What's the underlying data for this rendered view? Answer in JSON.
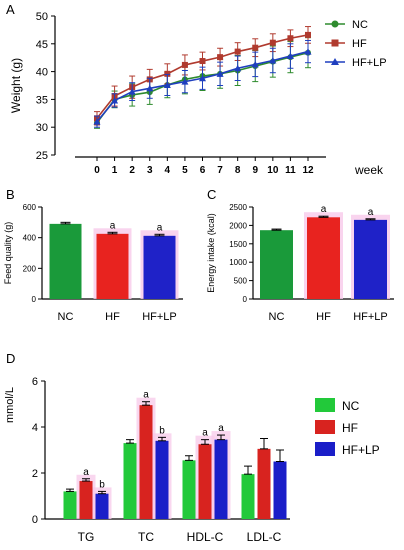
{
  "chart_data": [
    {
      "panel": "A",
      "type": "line",
      "ylabel": "Weight (g)",
      "xlabel": "week",
      "x": [
        0,
        1,
        2,
        3,
        4,
        5,
        6,
        7,
        8,
        9,
        10,
        11,
        12
      ],
      "ylim": [
        25,
        50
      ],
      "yticks": [
        25,
        30,
        35,
        40,
        45,
        50
      ],
      "legend_position": "right",
      "series": [
        {
          "name": "NC",
          "color": "#2e8b2e",
          "marker": "circle",
          "values": [
            30.8,
            35.0,
            35.8,
            36.3,
            37.6,
            38.6,
            39.2,
            39.6,
            40.2,
            41.0,
            41.8,
            42.6,
            43.4
          ],
          "errors": [
            1.0,
            1.5,
            2.0,
            2.2,
            2.3,
            2.6,
            2.6,
            2.6,
            2.7,
            2.8,
            2.8,
            2.8,
            2.7
          ]
        },
        {
          "name": "HF",
          "color": "#b03a2e",
          "marker": "square",
          "values": [
            31.6,
            35.6,
            37.2,
            38.6,
            39.6,
            41.2,
            41.9,
            42.6,
            43.6,
            44.3,
            45.2,
            46.0,
            46.6
          ],
          "errors": [
            1.2,
            1.8,
            2.0,
            1.8,
            1.8,
            1.8,
            1.6,
            1.6,
            1.6,
            1.6,
            1.6,
            1.5,
            1.5
          ]
        },
        {
          "name": "HF+LP",
          "color": "#1f3fbf",
          "marker": "triangle",
          "values": [
            31.0,
            34.8,
            36.4,
            37.0,
            37.6,
            38.2,
            38.8,
            39.6,
            40.6,
            41.3,
            42.0,
            42.8,
            43.6
          ],
          "errors": [
            1.0,
            1.2,
            1.6,
            1.8,
            1.9,
            2.0,
            2.0,
            2.1,
            2.2,
            2.2,
            2.2,
            2.2,
            2.0
          ]
        }
      ]
    },
    {
      "panel": "B",
      "type": "bar",
      "ylabel": "Feed quality (g)",
      "categories": [
        "NC",
        "HF",
        "HF+LP"
      ],
      "values": [
        490,
        425,
        412
      ],
      "errors": [
        10,
        10,
        10
      ],
      "significance": [
        "",
        "a",
        "a"
      ],
      "colors": [
        "#1a9a3a",
        "#e8231f",
        "#1f22c8"
      ],
      "ylim": [
        0,
        600
      ],
      "yticks": [
        0,
        200,
        400,
        600
      ]
    },
    {
      "panel": "C",
      "type": "bar",
      "ylabel": "Energy intake (kcal)",
      "categories": [
        "NC",
        "HF",
        "HF+LP"
      ],
      "values": [
        1870,
        2220,
        2150
      ],
      "errors": [
        30,
        30,
        30
      ],
      "significance": [
        "",
        "a",
        "a"
      ],
      "colors": [
        "#1a9a3a",
        "#e8231f",
        "#1f22c8"
      ],
      "ylim": [
        0,
        2500
      ],
      "yticks": [
        0,
        500,
        1000,
        1500,
        2000,
        2500
      ]
    },
    {
      "panel": "D",
      "type": "bar",
      "ylabel": "mmol/L",
      "categories": [
        "TG",
        "TC",
        "HDL-C",
        "LDL-C"
      ],
      "ylim": [
        0,
        6
      ],
      "yticks": [
        0,
        2,
        4,
        6
      ],
      "legend_position": "top-right",
      "series": [
        {
          "name": "NC",
          "color": "#22c93a",
          "values": [
            1.2,
            3.3,
            2.55,
            1.95
          ],
          "errors": [
            0.1,
            0.15,
            0.2,
            0.35
          ],
          "significance": [
            "",
            "",
            "",
            ""
          ]
        },
        {
          "name": "HF",
          "color": "#d8231f",
          "values": [
            1.65,
            4.95,
            3.25,
            3.05
          ],
          "errors": [
            0.1,
            0.15,
            0.2,
            0.45
          ],
          "significance": [
            "a",
            "a",
            "a",
            ""
          ]
        },
        {
          "name": "HF+LP",
          "color": "#1a1ec8",
          "values": [
            1.1,
            3.4,
            3.45,
            2.5
          ],
          "errors": [
            0.1,
            0.15,
            0.2,
            0.5
          ],
          "significance": [
            "b",
            "b",
            "a",
            ""
          ]
        }
      ]
    }
  ]
}
